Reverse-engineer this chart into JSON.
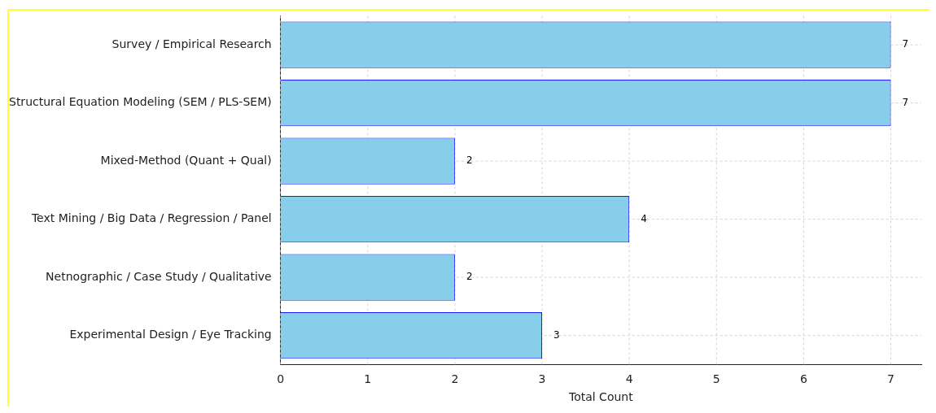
{
  "chart_data": {
    "type": "bar",
    "orientation": "horizontal",
    "xlabel": "Total Count",
    "categories": [
      "Survey / Empirical Research",
      "Structural Equation Modeling (SEM / PLS-SEM)",
      "Mixed-Method (Quant + Qual)",
      "Text Mining / Big Data / Regression / Panel",
      "Netnographic / Case Study / Qualitative",
      "Experimental Design / Eye Tracking"
    ],
    "values": [
      7,
      7,
      2,
      4,
      2,
      3
    ],
    "color": "#87ceeb",
    "data_labels": true,
    "grid": true,
    "xlim": [
      0,
      7.35
    ],
    "xticks": [
      0,
      1,
      2,
      3,
      4,
      5,
      6,
      7
    ]
  }
}
